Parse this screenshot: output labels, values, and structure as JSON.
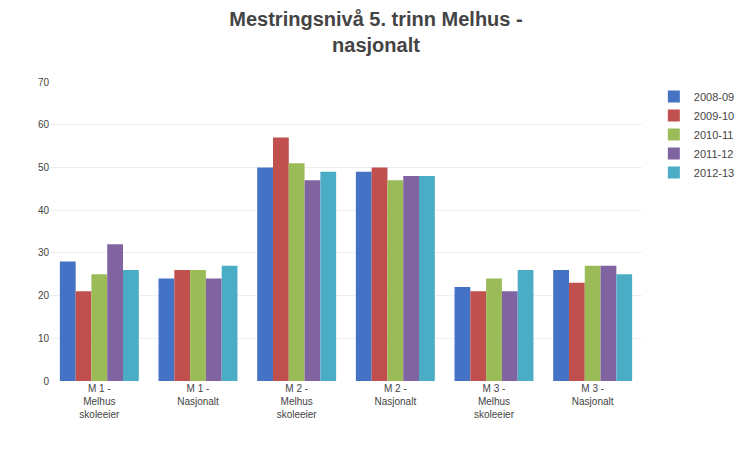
{
  "chart_data": {
    "type": "bar",
    "title": "Mestringsnivå 5. trinn Melhus -\nnasjonalt",
    "categories": [
      "M 1 -\nMelhus\nskoleeier",
      "M 1 -\nNasjonalt",
      "M 2 -\nMelhus\nskoleeier",
      "M 2 -\nNasjonalt",
      "M 3 -\nMelhus\nskoleeier",
      "M 3 -\nNasjonalt"
    ],
    "series": [
      {
        "name": "2008-09",
        "color": "#4472C4",
        "values": [
          28,
          24,
          50,
          49,
          22,
          26
        ]
      },
      {
        "name": "2009-10",
        "color": "#C0504D",
        "values": [
          21,
          26,
          57,
          50,
          21,
          23
        ]
      },
      {
        "name": "2010-11",
        "color": "#9BBB59",
        "values": [
          25,
          26,
          51,
          47,
          24,
          27
        ]
      },
      {
        "name": "2011-12",
        "color": "#8064A2",
        "values": [
          32,
          24,
          47,
          48,
          21,
          27
        ]
      },
      {
        "name": "2012-13",
        "color": "#4BACC6",
        "values": [
          26,
          27,
          49,
          48,
          26,
          25
        ]
      }
    ],
    "ylim": [
      0,
      70
    ],
    "yticks": [
      0,
      10,
      20,
      30,
      40,
      50,
      60,
      70
    ],
    "grid": true,
    "legend": "right"
  }
}
